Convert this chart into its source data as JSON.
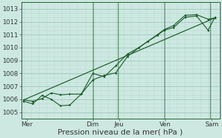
{
  "bg_color": "#cce8e0",
  "grid_minor_color": "#b8d8d0",
  "grid_major_color": "#a0c8bc",
  "line_color": "#1a5c28",
  "xlabel": "Pression niveau de la mer( hPa )",
  "ylim": [
    1004.5,
    1013.5
  ],
  "yticks": [
    1005,
    1006,
    1007,
    1008,
    1009,
    1010,
    1011,
    1012,
    1013
  ],
  "xlim": [
    -0.1,
    8.5
  ],
  "x_day_labels": [
    "Mer",
    "Dim",
    "Jeu",
    "Ven",
    "Sam"
  ],
  "x_day_positions": [
    0.15,
    3.0,
    4.15,
    6.15,
    8.15
  ],
  "vlines_x": [
    3.0,
    4.1,
    6.1,
    8.1
  ],
  "trend_x": [
    0,
    8.3
  ],
  "trend_y": [
    1005.95,
    1012.3
  ],
  "line1_x": [
    0,
    0.4,
    0.8,
    1.2,
    1.6,
    2.0,
    2.5,
    3.0,
    3.5,
    4.0,
    4.5,
    5.0,
    5.4,
    5.8,
    6.1,
    6.5,
    7.0,
    7.5,
    8.0,
    8.3
  ],
  "line1_y": [
    1005.85,
    1005.65,
    1006.3,
    1006.0,
    1005.5,
    1005.55,
    1006.4,
    1007.5,
    1007.85,
    1008.05,
    1009.3,
    1010.0,
    1010.5,
    1011.0,
    1011.4,
    1011.7,
    1012.5,
    1012.55,
    1012.2,
    1012.3
  ],
  "line2_x": [
    0,
    0.4,
    0.8,
    1.2,
    1.6,
    2.0,
    2.5,
    3.0,
    3.5,
    4.0,
    4.5,
    5.0,
    5.4,
    5.8,
    6.1,
    6.5,
    7.0,
    7.5,
    8.0,
    8.3
  ],
  "line2_y": [
    1005.95,
    1005.85,
    1006.05,
    1006.5,
    1006.35,
    1006.4,
    1006.4,
    1008.0,
    1007.75,
    1008.6,
    1009.5,
    1010.0,
    1010.5,
    1010.95,
    1011.35,
    1011.55,
    1012.35,
    1012.45,
    1011.35,
    1012.35
  ],
  "xlabel_fontsize": 8,
  "tick_fontsize": 6.5
}
